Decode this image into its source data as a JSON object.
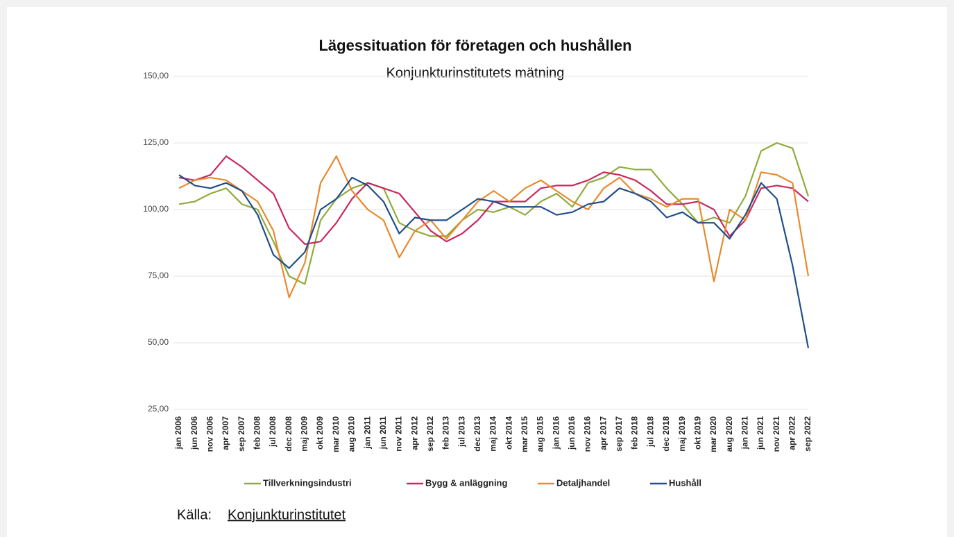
{
  "chart_data": {
    "type": "line",
    "title": "Lägessituation för företagen och hushållen",
    "subtitle": "Konjunkturinstitutets mätning",
    "categories": [
      "jan 2006",
      "jun 2006",
      "nov 2006",
      "apr 2007",
      "sep 2007",
      "feb 2008",
      "jul 2008",
      "dec 2008",
      "maj 2009",
      "okt 2009",
      "mar 2010",
      "aug 2010",
      "jan 2011",
      "jun 2011",
      "nov 2011",
      "apr 2012",
      "sep 2012",
      "feb 2013",
      "jul 2013",
      "dec 2013",
      "maj 2014",
      "okt 2014",
      "mar 2015",
      "aug 2015",
      "jan 2016",
      "jun 2016",
      "nov 2016",
      "apr 2017",
      "sep 2017",
      "feb 2018",
      "jul 2018",
      "dec 2018",
      "maj 2019",
      "okt 2019",
      "mar 2020",
      "aug 2020",
      "jan 2021",
      "jun 2021",
      "nov 2021",
      "apr 2022",
      "sep 2022"
    ],
    "series": [
      {
        "name": "Tillverkningsindustri",
        "color": "#8fab3c",
        "values": [
          102,
          103,
          106,
          108,
          102,
          100,
          88,
          75,
          72,
          96,
          104,
          108,
          110,
          108,
          95,
          92,
          90,
          90,
          96,
          100,
          99,
          101,
          98,
          103,
          106,
          101,
          110,
          112,
          116,
          115,
          115,
          108,
          102,
          95,
          97,
          95,
          105,
          122,
          125,
          123,
          105
        ]
      },
      {
        "name": "Bygg & anläggning",
        "color": "#c9285c",
        "values": [
          112,
          111,
          113,
          120,
          116,
          111,
          106,
          93,
          87,
          88,
          95,
          104,
          110,
          108,
          106,
          99,
          92,
          88,
          91,
          96,
          103,
          103,
          103,
          108,
          109,
          109,
          111,
          114,
          113,
          111,
          107,
          102,
          102,
          103,
          100,
          90,
          96,
          108,
          109,
          108,
          103
        ]
      },
      {
        "name": "Detaljhandel",
        "color": "#e88a2c",
        "values": [
          108,
          111,
          112,
          111,
          107,
          103,
          92,
          67,
          80,
          110,
          120,
          107,
          100,
          96,
          82,
          92,
          96,
          89,
          96,
          103,
          107,
          103,
          108,
          111,
          107,
          103,
          100,
          108,
          112,
          106,
          104,
          101,
          104,
          104,
          73,
          100,
          96,
          114,
          113,
          110,
          75
        ]
      },
      {
        "name": "Hushåll",
        "color": "#1f4e8a",
        "values": [
          113,
          109,
          108,
          110,
          107,
          98,
          83,
          78,
          84,
          100,
          104,
          112,
          109,
          103,
          91,
          97,
          96,
          96,
          100,
          104,
          103,
          101,
          101,
          101,
          98,
          99,
          102,
          103,
          108,
          106,
          103,
          97,
          99,
          95,
          95,
          89,
          98,
          110,
          104,
          79,
          48
        ]
      }
    ],
    "ylim": [
      25,
      150
    ],
    "yticks": [
      {
        "value": 25,
        "label": "25,00"
      },
      {
        "value": 50,
        "label": "50,00"
      },
      {
        "value": 75,
        "label": "75,00"
      },
      {
        "value": 100,
        "label": "100,00"
      },
      {
        "value": 125,
        "label": "125,00"
      },
      {
        "value": 150,
        "label": "150,00"
      }
    ],
    "grid": true
  },
  "source": {
    "prefix": "Källa:",
    "link": "Konjunkturinstitutet"
  }
}
